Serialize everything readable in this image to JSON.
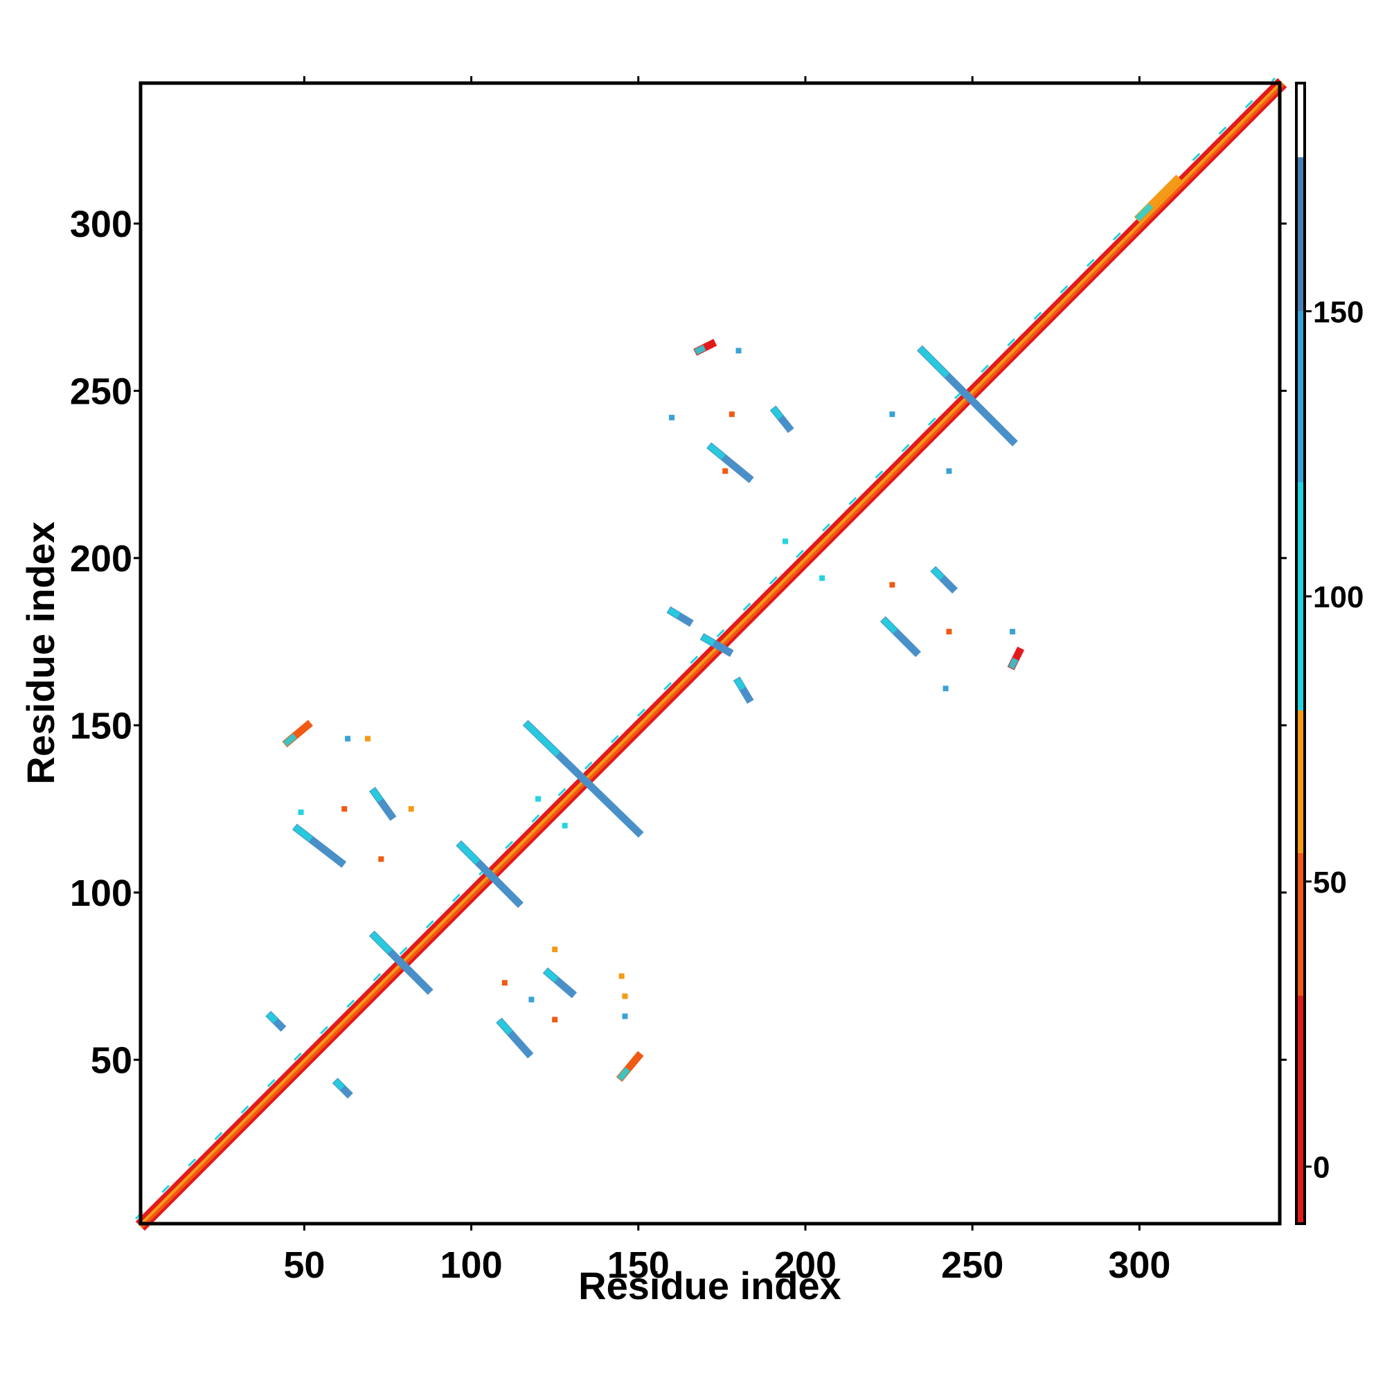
{
  "chart_data": {
    "type": "heatmap",
    "title": "",
    "xlabel": "Residue index",
    "ylabel": "Residue index",
    "xlim": [
      1,
      342
    ],
    "ylim": [
      1,
      342
    ],
    "xticks": [
      50,
      100,
      150,
      200,
      250,
      300
    ],
    "yticks": [
      50,
      100,
      150,
      200,
      250,
      300
    ],
    "grid": false,
    "colorbar": {
      "ticks": [
        0,
        50,
        100,
        150
      ],
      "range": [
        -10,
        190
      ],
      "bands": [
        {
          "from": -10,
          "to": 30,
          "color": "#e31a1c"
        },
        {
          "from": 30,
          "to": 55,
          "color": "#f05a14"
        },
        {
          "from": 55,
          "to": 80,
          "color": "#f59a16"
        },
        {
          "from": 80,
          "to": 120,
          "color": "#22d5e0"
        },
        {
          "from": 120,
          "to": 150,
          "color": "#3aa2d6"
        },
        {
          "from": 150,
          "to": 177,
          "color": "#4a7fb5"
        },
        {
          "from": 177,
          "to": 190,
          "color": "#ffffff"
        }
      ]
    },
    "diagonal": {
      "from": 1,
      "to": 342,
      "colors": [
        "#e31a1c",
        "#f05a14",
        "#f59a16",
        "#e31a1c"
      ]
    },
    "segments": [
      {
        "x1": 48,
        "y1": 119,
        "x2": 61,
        "y2": 109,
        "color": "#4a90c8"
      },
      {
        "x1": 71,
        "y1": 130,
        "x2": 76,
        "y2": 123,
        "color": "#4a90c8"
      },
      {
        "x1": 71,
        "y1": 87,
        "x2": 87,
        "y2": 71,
        "color": "#4a90c8"
      },
      {
        "x1": 97,
        "y1": 114,
        "x2": 114,
        "y2": 97,
        "color": "#4a90c8"
      },
      {
        "x1": 117,
        "y1": 150,
        "x2": 150,
        "y2": 118,
        "color": "#4a90c8"
      },
      {
        "x1": 109,
        "y1": 61,
        "x2": 117,
        "y2": 52,
        "color": "#4a90c8"
      },
      {
        "x1": 123,
        "y1": 76,
        "x2": 130,
        "y2": 70,
        "color": "#4a90c8"
      },
      {
        "x1": 160,
        "y1": 184,
        "x2": 165,
        "y2": 181,
        "color": "#4a90c8"
      },
      {
        "x1": 170,
        "y1": 176,
        "x2": 177,
        "y2": 172,
        "color": "#4a90c8"
      },
      {
        "x1": 180,
        "y1": 163,
        "x2": 183,
        "y2": 158,
        "color": "#4a90c8"
      },
      {
        "x1": 172,
        "y1": 233,
        "x2": 183,
        "y2": 224,
        "color": "#4a90c8"
      },
      {
        "x1": 191,
        "y1": 244,
        "x2": 195,
        "y2": 239,
        "color": "#4a90c8"
      },
      {
        "x1": 235,
        "y1": 262,
        "x2": 262,
        "y2": 235,
        "color": "#4a90c8"
      },
      {
        "x1": 224,
        "y1": 181,
        "x2": 233,
        "y2": 172,
        "color": "#4a90c8"
      },
      {
        "x1": 239,
        "y1": 196,
        "x2": 244,
        "y2": 191,
        "color": "#4a90c8"
      },
      {
        "x1": 40,
        "y1": 63,
        "x2": 43,
        "y2": 60,
        "color": "#4a90c8"
      },
      {
        "x1": 60,
        "y1": 43,
        "x2": 63,
        "y2": 40,
        "color": "#4a90c8"
      },
      {
        "x1": 300,
        "y1": 302,
        "x2": 311,
        "y2": 313,
        "color": "#f59a16"
      },
      {
        "x1": 45,
        "y1": 145,
        "x2": 51,
        "y2": 150,
        "color": "#f05a14"
      },
      {
        "x1": 145,
        "y1": 45,
        "x2": 150,
        "y2": 51,
        "color": "#f05a14"
      },
      {
        "x1": 168,
        "y1": 262,
        "x2": 172,
        "y2": 264,
        "color": "#e31a1c"
      },
      {
        "x1": 262,
        "y1": 168,
        "x2": 264,
        "y2": 172,
        "color": "#e31a1c"
      }
    ],
    "points": [
      {
        "x": 62,
        "y": 125,
        "color": "#f05a14"
      },
      {
        "x": 82,
        "y": 125,
        "color": "#f59a16"
      },
      {
        "x": 73,
        "y": 110,
        "color": "#f05a14"
      },
      {
        "x": 49,
        "y": 124,
        "color": "#22d5e0"
      },
      {
        "x": 63,
        "y": 146,
        "color": "#3aa2d6"
      },
      {
        "x": 69,
        "y": 146,
        "color": "#f59a16"
      },
      {
        "x": 125,
        "y": 62,
        "color": "#f05a14"
      },
      {
        "x": 125,
        "y": 83,
        "color": "#f59a16"
      },
      {
        "x": 110,
        "y": 73,
        "color": "#f05a14"
      },
      {
        "x": 146,
        "y": 63,
        "color": "#3aa2d6"
      },
      {
        "x": 146,
        "y": 69,
        "color": "#f59a16"
      },
      {
        "x": 118,
        "y": 68,
        "color": "#3aa2d6"
      },
      {
        "x": 145,
        "y": 75,
        "color": "#f59a16"
      },
      {
        "x": 178,
        "y": 243,
        "color": "#f05a14"
      },
      {
        "x": 176,
        "y": 226,
        "color": "#f05a14"
      },
      {
        "x": 160,
        "y": 242,
        "color": "#3aa2d6"
      },
      {
        "x": 180,
        "y": 262,
        "color": "#3aa2d6"
      },
      {
        "x": 243,
        "y": 178,
        "color": "#f05a14"
      },
      {
        "x": 226,
        "y": 192,
        "color": "#f05a14"
      },
      {
        "x": 242,
        "y": 161,
        "color": "#3aa2d6"
      },
      {
        "x": 262,
        "y": 178,
        "color": "#3aa2d6"
      },
      {
        "x": 194,
        "y": 205,
        "color": "#22d5e0"
      },
      {
        "x": 205,
        "y": 194,
        "color": "#22d5e0"
      },
      {
        "x": 226,
        "y": 243,
        "color": "#3aa2d6"
      },
      {
        "x": 243,
        "y": 226,
        "color": "#3aa2d6"
      },
      {
        "x": 120,
        "y": 128,
        "color": "#22d5e0"
      },
      {
        "x": 128,
        "y": 120,
        "color": "#22d5e0"
      }
    ]
  }
}
